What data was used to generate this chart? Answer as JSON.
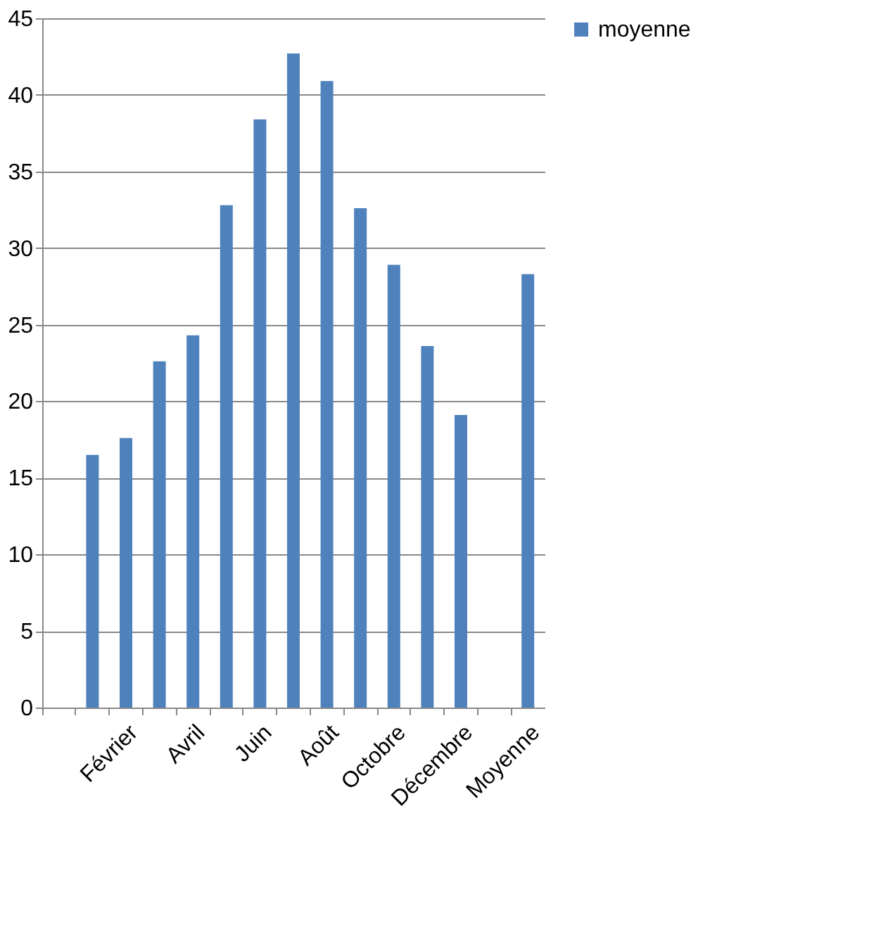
{
  "chart_data": {
    "type": "bar",
    "categories": [
      null,
      null,
      "Février",
      null,
      "Avril",
      null,
      "Juin",
      null,
      "Août",
      null,
      "Octobre",
      null,
      "Décembre",
      null,
      "Moyenne"
    ],
    "series": [
      {
        "name": "moyenne",
        "color": "#4f81bd",
        "values": [
          null,
          16.5,
          17.6,
          22.6,
          24.3,
          32.8,
          38.4,
          42.7,
          40.9,
          32.6,
          28.9,
          23.6,
          19.1,
          null,
          28.3
        ]
      }
    ],
    "ylim": [
      0,
      45
    ],
    "yticks": [
      0,
      5,
      10,
      15,
      20,
      25,
      30,
      35,
      40,
      45
    ],
    "grid": "y",
    "legend": "right"
  }
}
